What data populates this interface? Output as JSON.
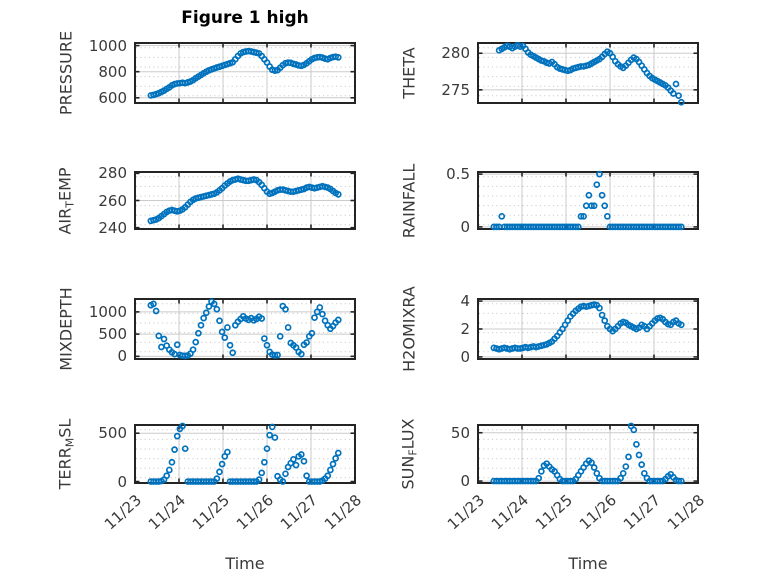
{
  "figure": {
    "title": "Figure 1 high",
    "xlabel": "Time",
    "marker_color": "#0072BD",
    "axis_color": "#242424",
    "grid_color": "#cbcbcb",
    "minor_grid_color": "#c2c2c2",
    "background": "#ffffff"
  },
  "time_axis": {
    "tick_labels": [
      "11/23",
      "11/24",
      "11/25",
      "11/26",
      "11/27",
      "11/28"
    ],
    "t_start": 0.36,
    "t_step": 0.06
  },
  "chart_data": [
    {
      "type": "scatter",
      "name": "PRESSURE",
      "ylabel": [
        {
          "text": "PRESSURE"
        }
      ],
      "ylim": [
        560,
        1020
      ],
      "yticks": [
        600,
        800,
        1000
      ],
      "values": [
        618,
        622,
        628,
        635,
        645,
        655,
        668,
        680,
        695,
        705,
        710,
        712,
        715,
        712,
        718,
        725,
        735,
        750,
        762,
        775,
        788,
        800,
        810,
        818,
        825,
        832,
        838,
        845,
        852,
        858,
        865,
        872,
        895,
        920,
        940,
        950,
        955,
        958,
        955,
        950,
        945,
        940,
        920,
        895,
        870,
        840,
        815,
        808,
        812,
        830,
        850,
        865,
        870,
        868,
        860,
        855,
        848,
        845,
        852,
        865,
        880,
        895,
        905,
        910,
        912,
        908,
        900,
        895,
        905,
        912,
        915,
        910
      ]
    },
    {
      "type": "scatter",
      "name": "THETA",
      "ylabel": [
        {
          "text": "THETA"
        }
      ],
      "ylim": [
        273.2,
        281.4
      ],
      "yticks": [
        275,
        280
      ],
      "values": [
        null,
        null,
        280.4,
        280.6,
        280.8,
        281,
        280.9,
        280.7,
        280.9,
        281.1,
        280.9,
        281,
        280.6,
        280.1,
        279.8,
        279.6,
        279.4,
        279.2,
        279,
        278.9,
        278.7,
        278.6,
        278.8,
        278.5,
        278.1,
        277.9,
        277.8,
        277.7,
        277.6,
        277.7,
        277.9,
        278,
        278.1,
        278.2,
        278.2,
        278.3,
        278.4,
        278.6,
        278.8,
        279,
        279.2,
        279.5,
        279.9,
        280.2,
        280,
        279.5,
        278.9,
        278.5,
        278.2,
        278,
        278.3,
        278.7,
        279.1,
        279.4,
        279.2,
        278.8,
        278.3,
        277.8,
        277.3,
        276.9,
        276.6,
        276.4,
        276.2,
        276,
        275.8,
        275.6,
        275.3,
        274.9,
        274.5,
        275.8,
        274.2,
        273.3
      ]
    },
    {
      "type": "scatter",
      "name": "AIR_TEMP",
      "ylabel": [
        {
          "text": "AIR"
        },
        {
          "text": "T",
          "sub": true
        },
        {
          "text": "EMP"
        }
      ],
      "ylim": [
        239,
        281
      ],
      "yticks": [
        240,
        260,
        280
      ],
      "values": [
        245,
        245.5,
        246,
        247,
        248.5,
        250,
        251.5,
        252.5,
        253,
        252.5,
        252,
        252.5,
        253.5,
        255,
        257,
        259,
        260.5,
        261.5,
        262,
        262.5,
        263,
        263.5,
        264,
        264.5,
        265,
        266,
        267.5,
        269,
        271,
        272.5,
        274,
        275,
        275.5,
        276,
        275.5,
        275,
        274.5,
        274.5,
        275,
        275.5,
        275,
        273.5,
        271.5,
        269,
        266.5,
        265,
        265.5,
        266.5,
        267.5,
        268,
        268,
        267.5,
        267,
        266.5,
        266.5,
        267,
        267.5,
        268,
        268.5,
        269.5,
        270,
        269.5,
        269,
        269.5,
        270,
        270.5,
        270,
        269.5,
        268.5,
        267,
        265.5,
        264.5
      ]
    },
    {
      "type": "scatter",
      "name": "RAINFALL",
      "ylabel": [
        {
          "text": "RAINFALL"
        }
      ],
      "ylim": [
        -0.02,
        0.52
      ],
      "yticks": [
        0,
        0.5
      ],
      "values": [
        0,
        0,
        0,
        0.1,
        0,
        0,
        0,
        0,
        0,
        0,
        0,
        0,
        0,
        0,
        0,
        0,
        0,
        0,
        0,
        0,
        0,
        0,
        0,
        0,
        0,
        0,
        0,
        0,
        0,
        0,
        0,
        0,
        0,
        0.1,
        0.1,
        0.2,
        0.3,
        0.2,
        0.2,
        0.4,
        0.5,
        0.3,
        0.2,
        0.1,
        0,
        0,
        0,
        0,
        0,
        0,
        0,
        0,
        0,
        0,
        0,
        0,
        0,
        0,
        0,
        0,
        0,
        0,
        0,
        0,
        0,
        0,
        0,
        0,
        0,
        0,
        0,
        0
      ]
    },
    {
      "type": "scatter",
      "name": "MIXDEPTH",
      "ylabel": [
        {
          "text": "MIXDEPTH"
        }
      ],
      "ylim": [
        -60,
        1290
      ],
      "yticks": [
        0,
        500,
        1000
      ],
      "values": [
        1150,
        1180,
        1020,
        460,
        210,
        390,
        240,
        150,
        90,
        50,
        260,
        30,
        15,
        10,
        20,
        60,
        150,
        320,
        520,
        700,
        860,
        980,
        1120,
        1230,
        1180,
        1060,
        800,
        550,
        420,
        650,
        250,
        80,
        700,
        780,
        840,
        900,
        850,
        820,
        860,
        810,
        840,
        890,
        850,
        400,
        250,
        100,
        40,
        20,
        30,
        450,
        1130,
        1060,
        650,
        300,
        250,
        200,
        100,
        50,
        260,
        310,
        450,
        520,
        870,
        1000,
        1100,
        950,
        800,
        700,
        620,
        680,
        760,
        820
      ]
    },
    {
      "type": "scatter",
      "name": "H2OMIXRA",
      "ylabel": [
        {
          "text": "H2OMIXRA"
        }
      ],
      "ylim": [
        -0.15,
        4.15
      ],
      "yticks": [
        0,
        2,
        4
      ],
      "values": [
        0.65,
        0.6,
        0.55,
        0.6,
        0.65,
        0.6,
        0.55,
        0.6,
        0.65,
        0.6,
        0.6,
        0.65,
        0.7,
        0.65,
        0.7,
        0.75,
        0.7,
        0.75,
        0.8,
        0.85,
        0.9,
        1,
        1.1,
        1.3,
        1.5,
        1.75,
        2,
        2.3,
        2.6,
        2.9,
        3.1,
        3.3,
        3.45,
        3.6,
        3.65,
        3.6,
        3.65,
        3.7,
        3.75,
        3.7,
        3.5,
        3,
        2.6,
        2.2,
        2,
        1.85,
        2,
        2.2,
        2.4,
        2.5,
        2.45,
        2.3,
        2.2,
        2.1,
        2,
        2.1,
        2.3,
        2.2,
        2,
        2.2,
        2.4,
        2.6,
        2.75,
        2.8,
        2.7,
        2.5,
        2.35,
        2.3,
        2.5,
        2.6,
        2.4,
        2.3
      ]
    },
    {
      "type": "scatter",
      "name": "TERR_MSL",
      "ylabel": [
        {
          "text": "TERR"
        },
        {
          "text": "M",
          "sub": true
        },
        {
          "text": "SL"
        }
      ],
      "ylim": [
        -15,
        585
      ],
      "yticks": [
        0,
        500
      ],
      "values": [
        0,
        0,
        0,
        0,
        5,
        20,
        60,
        120,
        200,
        330,
        470,
        545,
        575,
        340,
        0,
        0,
        0,
        0,
        0,
        0,
        0,
        0,
        0,
        0,
        0,
        30,
        100,
        180,
        260,
        305,
        0,
        0,
        0,
        0,
        0,
        0,
        0,
        0,
        0,
        0,
        0,
        20,
        90,
        200,
        340,
        480,
        565,
        455,
        55,
        20,
        0,
        80,
        150,
        190,
        230,
        170,
        260,
        280,
        210,
        60,
        0,
        0,
        0,
        0,
        0,
        10,
        30,
        60,
        120,
        180,
        240,
        295
      ]
    },
    {
      "type": "scatter",
      "name": "SUN_FLUX",
      "ylabel": [
        {
          "text": "SUN"
        },
        {
          "text": "F",
          "sub": true
        },
        {
          "text": "LUX"
        }
      ],
      "ylim": [
        -2,
        58
      ],
      "yticks": [
        0,
        50
      ],
      "values": [
        0,
        0,
        0,
        0,
        0,
        0,
        0,
        0,
        0,
        0,
        0,
        0,
        0,
        0,
        0,
        0,
        0,
        3,
        10,
        16,
        18,
        15,
        12,
        10,
        6,
        2,
        0,
        0,
        0,
        0,
        0,
        2,
        6,
        10,
        14,
        18,
        21,
        19,
        14,
        8,
        3,
        0,
        0,
        0,
        0,
        0,
        0,
        0,
        3,
        8,
        15,
        25,
        57,
        53,
        38,
        27,
        17,
        8,
        3,
        0,
        0,
        0,
        0,
        0,
        0,
        2,
        5,
        7,
        4,
        1,
        0,
        0
      ]
    }
  ]
}
